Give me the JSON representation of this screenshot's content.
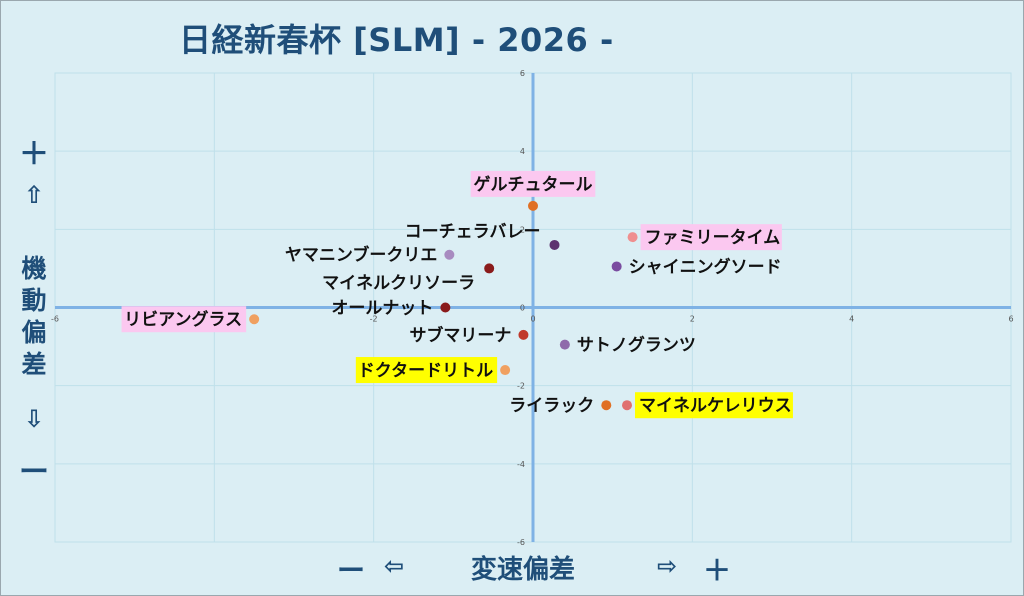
{
  "title": "日経新春杯 [SLM]  - 2026 -",
  "y_axis": {
    "plus_sign": "＋",
    "up_arrow": "⇧",
    "label": "機動偏差",
    "down_arrow": "⇩",
    "minus_sign": "ー"
  },
  "x_axis": {
    "minus_sign": "ー",
    "left_arrow": "⇦",
    "label": "変速偏差",
    "right_arrow": "⇨",
    "plus_sign": "＋"
  },
  "colors": {
    "background": "#dbeef4",
    "axis": "#7fb2e5",
    "grid": "#bfe0ea",
    "title": "#1f4e79",
    "highlight_pink": "#fbc8f0",
    "highlight_yellow": "#ffff00"
  },
  "chart_data": {
    "type": "scatter",
    "xlim": [
      -6,
      6
    ],
    "ylim": [
      -6,
      6
    ],
    "x_ticks": [
      "-6",
      "-4",
      "-2",
      "0",
      "2",
      "4",
      "6"
    ],
    "y_ticks": [
      "6",
      "4",
      "2",
      "0",
      "-2",
      "-4",
      "-6"
    ],
    "grid": true,
    "points": [
      {
        "label": "ゲルチュタール",
        "x": 0.0,
        "y": 2.6,
        "color": "#e07025",
        "highlight": "pink",
        "label_pos": "above"
      },
      {
        "label": "コーチェラバレー",
        "x": 0.27,
        "y": 1.6,
        "color": "#5e3370",
        "highlight": "none",
        "label_pos": "left-above"
      },
      {
        "label": "ファミリータイム",
        "x": 1.25,
        "y": 1.8,
        "color": "#ef8f8f",
        "highlight": "pink",
        "label_pos": "right"
      },
      {
        "label": "シャイニングソード",
        "x": 1.05,
        "y": 1.05,
        "color": "#7a4ca0",
        "highlight": "none",
        "label_pos": "right"
      },
      {
        "label": "ヤマニンブークリエ",
        "x": -1.05,
        "y": 1.35,
        "color": "#a88bc0",
        "highlight": "none",
        "label_pos": "left"
      },
      {
        "label": "マイネルクリソーラ",
        "x": -0.55,
        "y": 1.0,
        "color": "#8a1b1b",
        "highlight": "none",
        "label_pos": "left-below"
      },
      {
        "label": "オールナット",
        "x": -1.1,
        "y": 0.0,
        "color": "#8a1b1b",
        "highlight": "none",
        "label_pos": "left"
      },
      {
        "label": "リビアングラス",
        "x": -3.5,
        "y": -0.3,
        "color": "#f0a060",
        "highlight": "pink",
        "label_pos": "left"
      },
      {
        "label": "サブマリーナ",
        "x": -0.12,
        "y": -0.7,
        "color": "#c0392b",
        "highlight": "none",
        "label_pos": "left"
      },
      {
        "label": "サトノグランツ",
        "x": 0.4,
        "y": -0.95,
        "color": "#8f6aab",
        "highlight": "none",
        "label_pos": "right"
      },
      {
        "label": "ドクタードリトル",
        "x": -0.35,
        "y": -1.6,
        "color": "#f0a060",
        "highlight": "yellow",
        "label_pos": "left"
      },
      {
        "label": "ライラック",
        "x": 0.92,
        "y": -2.5,
        "color": "#e07025",
        "highlight": "none",
        "label_pos": "left"
      },
      {
        "label": "マイネルケレリウス",
        "x": 1.18,
        "y": -2.5,
        "color": "#e07070",
        "highlight": "yellow",
        "label_pos": "right"
      }
    ]
  }
}
